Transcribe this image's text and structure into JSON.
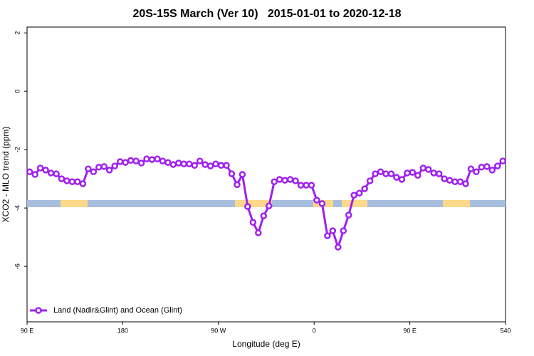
{
  "chart_data": {
    "type": "line",
    "title": "20S-15S March (Ver 10)   2015-01-01 to 2020-12-18",
    "xlabel": "Longitude (deg E)",
    "ylabel": "XCO2 - MLO trend (ppm)",
    "xlim": [
      90,
      540
    ],
    "ylim": [
      -7.9,
      2.2
    ],
    "xticks": [
      {
        "value": 90,
        "label": "90 E"
      },
      180,
      {
        "value": 270,
        "label": "90 W"
      },
      {
        "value": 360,
        "label": "0"
      },
      {
        "value": 450,
        "label": "90 E"
      },
      540
    ],
    "yticks": [
      2,
      0,
      -2,
      -4,
      -6
    ],
    "legend": "bottom-left",
    "x": [
      92.5,
      97.5,
      102.5,
      107.5,
      112.5,
      117.5,
      122.5,
      127.5,
      132.5,
      137.5,
      142.5,
      147.5,
      152.5,
      157.5,
      162.5,
      167.5,
      172.5,
      177.5,
      182.5,
      187.5,
      192.5,
      197.5,
      202.5,
      207.5,
      212.5,
      217.5,
      222.5,
      227.5,
      232.5,
      237.5,
      242.5,
      247.5,
      252.5,
      257.5,
      262.5,
      267.5,
      272.5,
      277.5,
      282.5,
      287.5,
      292.5,
      297.5,
      302.5,
      307.5,
      312.5,
      317.5,
      322.5,
      327.5,
      332.5,
      337.5,
      342.5,
      347.5,
      352.5,
      357.5,
      362.5,
      367.5,
      372.5,
      377.5,
      382.5,
      387.5,
      392.5,
      397.5,
      402.5,
      407.5,
      412.5,
      417.5,
      422.5,
      427.5,
      432.5,
      437.5,
      442.5,
      447.5,
      452.5,
      457.5,
      462.5,
      467.5,
      472.5,
      477.5,
      482.5,
      487.5,
      492.5,
      497.5,
      502.5,
      507.5,
      512.5,
      517.5,
      522.5,
      527.5,
      532.5,
      537.5
    ],
    "series": [
      {
        "name": "Land (Nadir&Glint) and Ocean (Glint)",
        "color": "#a020f0",
        "values": [
          -2.76,
          -2.85,
          -2.63,
          -2.7,
          -2.8,
          -2.83,
          -3.0,
          -3.07,
          -3.1,
          -3.1,
          -3.17,
          -2.66,
          -2.76,
          -2.6,
          -2.58,
          -2.7,
          -2.56,
          -2.41,
          -2.44,
          -2.37,
          -2.39,
          -2.46,
          -2.32,
          -2.34,
          -2.32,
          -2.39,
          -2.44,
          -2.51,
          -2.46,
          -2.49,
          -2.49,
          -2.54,
          -2.39,
          -2.51,
          -2.56,
          -2.49,
          -2.54,
          -2.54,
          -2.83,
          -3.2,
          -2.85,
          -3.95,
          -4.49,
          -4.85,
          -4.27,
          -3.93,
          -3.1,
          -3.02,
          -3.05,
          -3.02,
          -3.07,
          -3.22,
          -3.22,
          -3.22,
          -3.73,
          -3.85,
          -4.95,
          -4.78,
          -5.34,
          -4.78,
          -4.24,
          -3.56,
          -3.49,
          -3.34,
          -3.07,
          -2.83,
          -2.76,
          -2.83,
          -2.83,
          -2.95,
          -3.02,
          -2.8,
          -2.78,
          -2.88,
          -2.63,
          -2.68,
          -2.8,
          -2.83,
          -3.0,
          -3.05,
          -3.1,
          -3.1,
          -3.17,
          -2.66,
          -2.76,
          -2.6,
          -2.58,
          -2.7,
          -2.56,
          -2.39
        ]
      }
    ]
  }
}
